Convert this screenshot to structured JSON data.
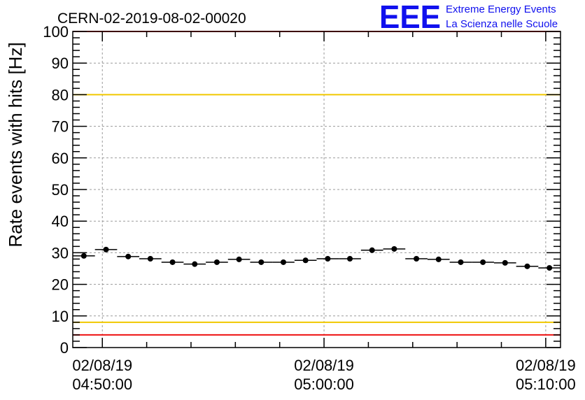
{
  "header": {
    "run_id": "CERN-02-2019-08-02-00020",
    "logo_text": "EEE",
    "logo_line1": "Extreme Energy Events",
    "logo_line2": "La Scienza nelle Scuole"
  },
  "colors": {
    "frame": "#000000",
    "grid": "#9a9a9a",
    "red_limit": "#ee1111",
    "yellow_limit": "#f0c800",
    "points": "#000000",
    "logo": "#1010ee"
  },
  "chart_data": {
    "type": "scatter",
    "title": "CERN-02-2019-08-02-00020",
    "ylabel": "Rate events with hits [Hz]",
    "xlabel": "",
    "ylim": [
      0,
      100
    ],
    "yticks": [
      0,
      10,
      20,
      30,
      40,
      50,
      60,
      70,
      80,
      90,
      100
    ],
    "xlim": [
      "04:48:40",
      "05:10:40"
    ],
    "x_tick_labels": [
      {
        "x": "04:50:00",
        "date": "02/08/19",
        "time": "04:50:00"
      },
      {
        "x": "05:00:00",
        "date": "02/08/19",
        "time": "05:00:00"
      },
      {
        "x": "05:10:00",
        "date": "02/08/19",
        "time": "05:10:00"
      }
    ],
    "grid": true,
    "bin_width_seconds": 60,
    "horizontal_lines": [
      {
        "y": 100,
        "color": "red"
      },
      {
        "y": 80,
        "color": "yellow"
      },
      {
        "y": 8,
        "color": "yellow"
      },
      {
        "y": 4,
        "color": "red"
      }
    ],
    "series": [
      {
        "x": [
          "04:49:10",
          "04:50:10",
          "04:51:10",
          "04:52:10",
          "04:53:10",
          "04:54:10",
          "04:55:10",
          "04:56:10",
          "04:57:10",
          "04:58:10",
          "04:59:10",
          "05:00:10",
          "05:01:10",
          "05:02:10",
          "05:03:10",
          "05:04:10",
          "05:05:10",
          "05:06:10",
          "05:07:10",
          "05:08:10",
          "05:09:10",
          "05:10:10"
        ],
        "y": [
          29.0,
          31.0,
          28.8,
          28.1,
          27.0,
          26.4,
          27.0,
          27.9,
          27.0,
          27.0,
          27.6,
          28.1,
          28.1,
          30.8,
          31.2,
          28.1,
          27.9,
          27.0,
          27.0,
          26.8,
          25.7,
          25.2
        ]
      }
    ]
  }
}
